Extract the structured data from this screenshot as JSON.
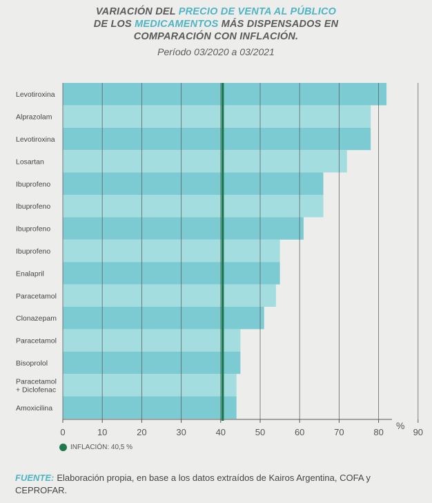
{
  "header": {
    "title_line1_part1": "VARIACIÓN DEL ",
    "title_line1_highlight": "PRECIO DE VENTA AL PÚBLICO",
    "title_line2_part1": "DE LOS ",
    "title_line2_highlight": "MEDICAMENTOS",
    "title_line2_part2": " MÁS DISPENSADOS EN",
    "title_line3": "COMPARACIÓN CON INFLACIÓN.",
    "subtitle": "Período 03/2020 a 03/2021"
  },
  "colors": {
    "bar_dark": "#7ccbd3",
    "bar_light": "#a4dde0",
    "inflation_line": "#1e7a4c",
    "grid": "#555555",
    "highlight_text": "#4fb4c4"
  },
  "chart_data": {
    "type": "bar",
    "orientation": "horizontal",
    "categories": [
      "Levotiroxina",
      "Alprazolam",
      "Levotiroxina",
      "Losartan",
      "Ibuprofeno",
      "Ibuprofeno",
      "Ibuprofeno",
      "Ibuprofeno",
      "Enalapril",
      "Paracetamol",
      "Clonazepam",
      "Paracetamol",
      "Bisoprolol",
      "Paracetamol\n+ Diclofenac",
      "Amoxicilina"
    ],
    "values": [
      82,
      78,
      78,
      72,
      66,
      66,
      61,
      55,
      55,
      54,
      51,
      45,
      45,
      44,
      44
    ],
    "x_ticks": [
      0,
      10,
      20,
      30,
      40,
      50,
      60,
      70,
      80,
      90
    ],
    "xlim": [
      0,
      90
    ],
    "x_unit": "%",
    "grid": true,
    "inflation": {
      "value": 40.5,
      "label": "INFLACIÓN: 40,5 %"
    }
  },
  "footer": {
    "source_label": "FUENTE:",
    "source_text": "Elaboración propia, en base a los datos extraídos de Kairos Argentina, COFA y CEPROFAR."
  }
}
